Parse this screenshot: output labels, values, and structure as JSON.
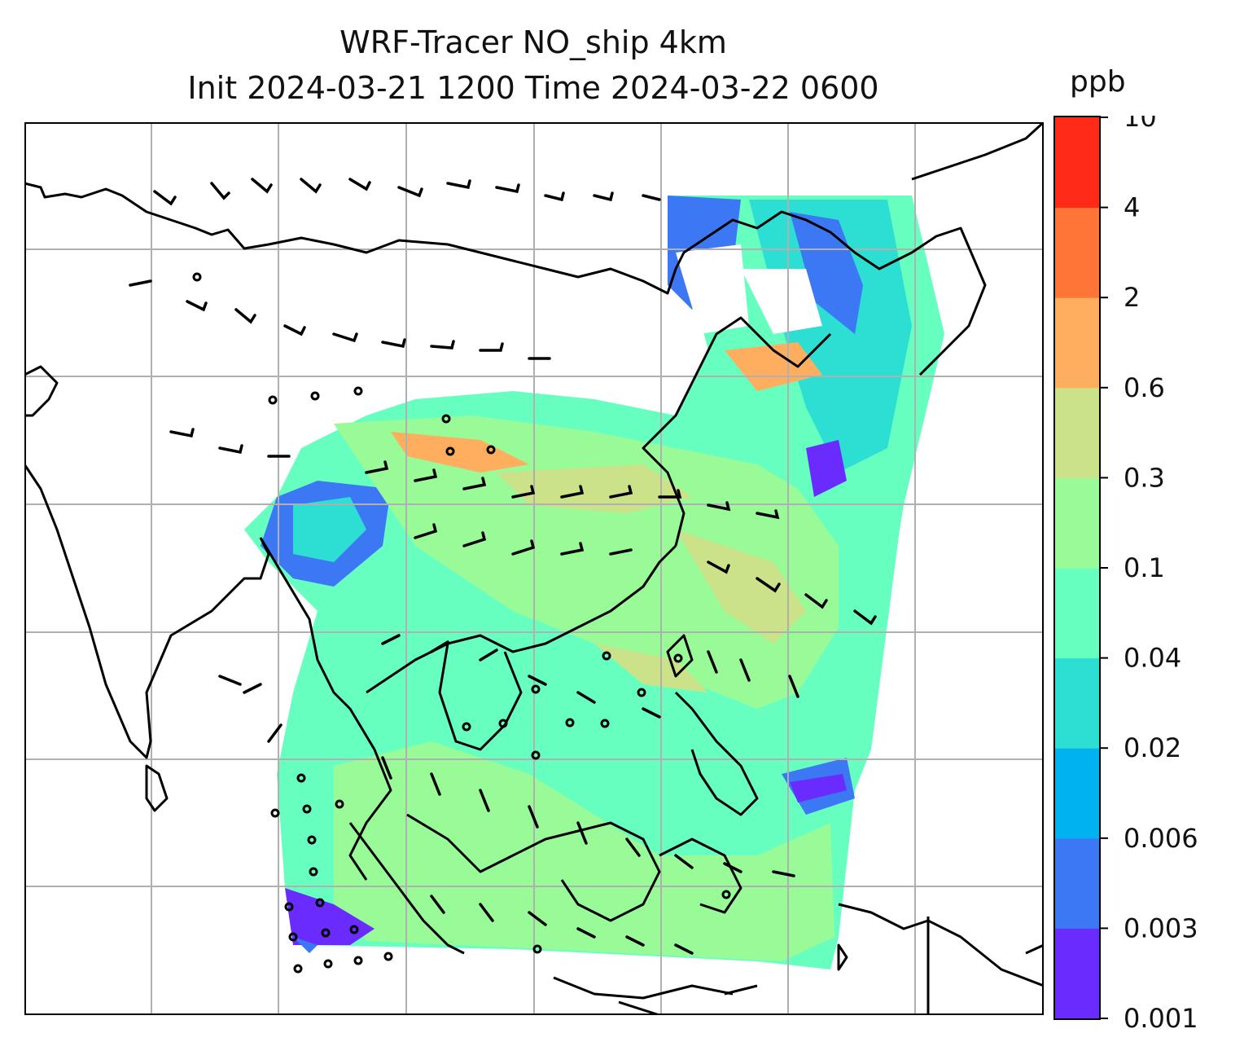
{
  "title": {
    "line1": "WRF-Tracer NO_ship 4km",
    "line2": "Init 2024-03-21 1200 Time 2024-03-22 0600"
  },
  "colorbar": {
    "unit": "ppb",
    "levels": [
      "0.001",
      "0.003",
      "0.006",
      "0.02",
      "0.04",
      "0.1",
      "0.3",
      "0.6",
      "2",
      "4",
      "10"
    ],
    "colors": [
      "#6a2bff",
      "#3c78f4",
      "#00b2ef",
      "#2ddfd2",
      "#66ffc0",
      "#98fb98",
      "#cce288",
      "#ffad5f",
      "#ff7538",
      "#ff2b18"
    ]
  },
  "map": {
    "grid_color": "#b0b0b0",
    "coast_color": "#000000",
    "wind_barb_color": "#000000"
  }
}
